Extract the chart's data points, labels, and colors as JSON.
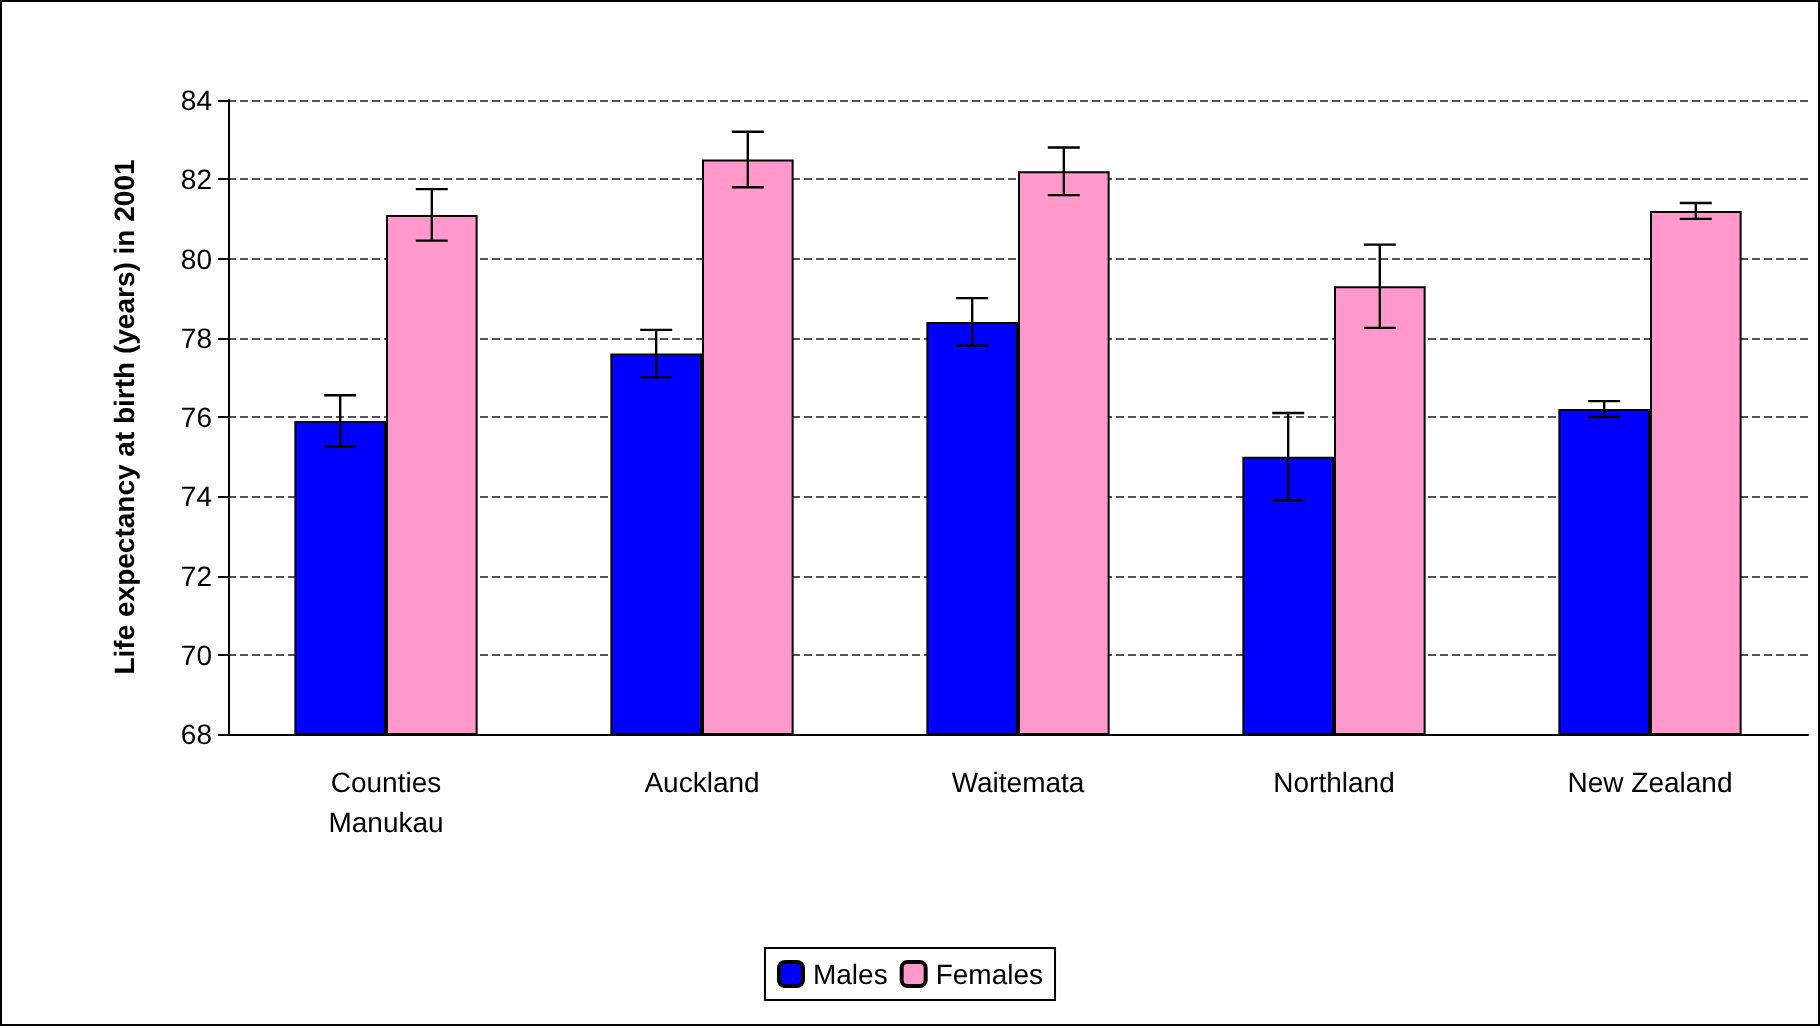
{
  "chart_data": {
    "type": "bar",
    "ylabel": "Life expectancy at birth (years) in 2001",
    "categories": [
      "Counties\nManukau",
      "Auckland",
      "Waitemata",
      "Northland",
      "New Zealand"
    ],
    "series": [
      {
        "name": "Males",
        "color": "#0000ff",
        "values": [
          75.9,
          77.6,
          78.4,
          75.0,
          76.2
        ],
        "errors": [
          0.65,
          0.6,
          0.6,
          1.1,
          0.2
        ]
      },
      {
        "name": "Females",
        "color": "#ff99cc",
        "values": [
          81.1,
          82.5,
          82.2,
          79.3,
          81.2
        ],
        "errors": [
          0.65,
          0.7,
          0.6,
          1.05,
          0.2
        ]
      }
    ],
    "ylim": [
      68,
      84
    ],
    "yticks": [
      68,
      70,
      72,
      74,
      76,
      78,
      80,
      82,
      84
    ],
    "grid": "y",
    "legend": "bottom"
  }
}
